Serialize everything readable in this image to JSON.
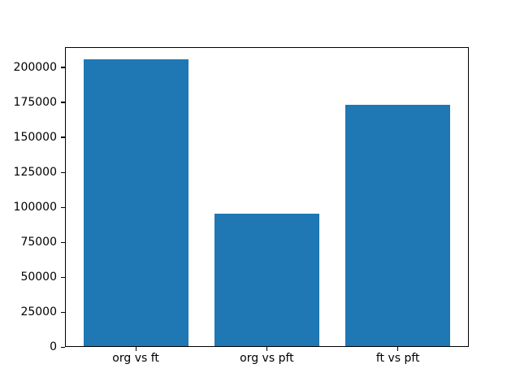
{
  "chart_data": {
    "type": "bar",
    "title": "",
    "xlabel": "",
    "ylabel": "",
    "categories": [
      "org vs ft",
      "org vs pft",
      "ft vs pft"
    ],
    "values": [
      206000,
      95500,
      173500
    ],
    "yticks": [
      0,
      25000,
      50000,
      75000,
      100000,
      125000,
      150000,
      175000,
      200000
    ],
    "ylim": [
      0,
      214800
    ],
    "bar_width": 0.8,
    "x_margin_units": 0.54,
    "bar_color": "#1f77b4",
    "axes_color": "#000000",
    "text_color": "#000000",
    "background_color": "#ffffff",
    "grid": false
  }
}
